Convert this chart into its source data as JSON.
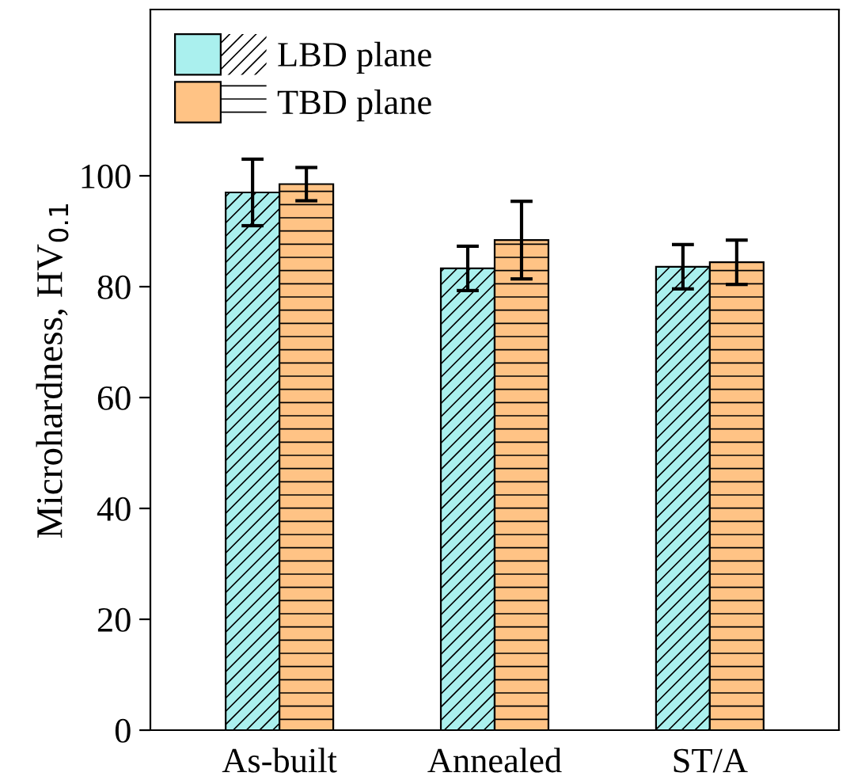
{
  "chart_data": {
    "type": "bar",
    "ylabel": "Microhardness, HV$_{0.1}$",
    "categories": [
      "As-built",
      "Annealed",
      "ST/A"
    ],
    "series": [
      {
        "name": "LBD plane",
        "color": "#aaf0ee",
        "values": [
          97,
          83.3,
          83.6
        ],
        "errors": [
          6,
          4,
          4
        ]
      },
      {
        "name": "TBD plane",
        "color": "#ffc385",
        "values": [
          98.5,
          88.4,
          84.4
        ],
        "errors": [
          3,
          7,
          4
        ]
      }
    ],
    "ylim": [
      0,
      130
    ],
    "yticks": [
      0,
      20,
      40,
      60,
      80,
      100
    ],
    "grid": false,
    "legend": "top left"
  }
}
